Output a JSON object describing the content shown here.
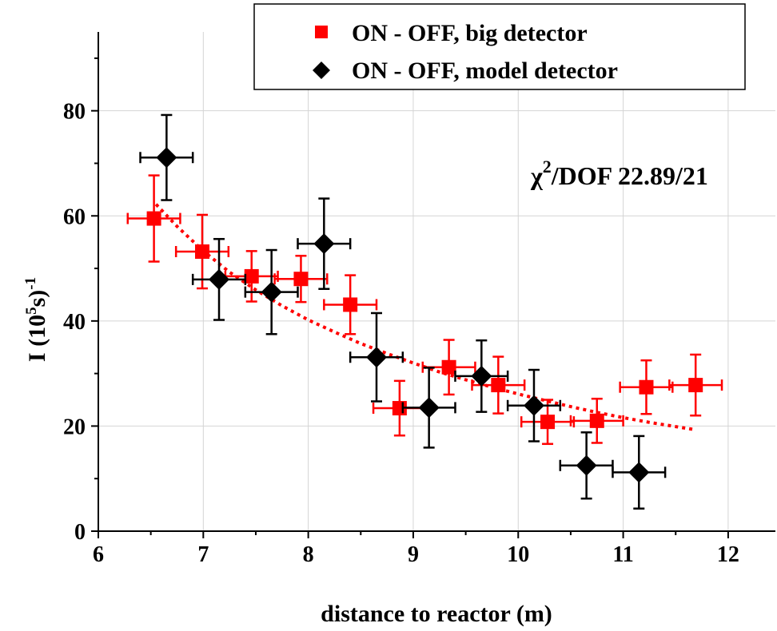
{
  "chart_data": {
    "type": "scatter",
    "xlabel": "distance to reactor (m)",
    "ylabel": "I (10",
    "ylabel_sup": "5",
    "ylabel_tail": "s)",
    "ylabel_exp": "-1",
    "xlim": [
      6,
      12.45
    ],
    "ylim": [
      0,
      95
    ],
    "x_ticks": [
      6,
      7,
      8,
      9,
      10,
      11,
      12
    ],
    "x_tick_labels": [
      "6",
      "7",
      "8",
      "9",
      "10",
      "11",
      "12"
    ],
    "y_ticks": [
      0,
      20,
      40,
      60,
      80
    ],
    "y_tick_labels": [
      "0",
      "20",
      "40",
      "60",
      "80"
    ],
    "grid": true,
    "legend_position": "top-right",
    "annotation": {
      "chi": "χ",
      "sup": "2",
      "rest": "/DOF 22.89/21"
    },
    "series": [
      {
        "name": "ON - OFF, big detector",
        "marker": "square",
        "color": "#ff0000",
        "points": [
          {
            "x": 6.53,
            "y": 59.5,
            "xerr": 0.25,
            "yerr": 8.2
          },
          {
            "x": 6.99,
            "y": 53.2,
            "xerr": 0.25,
            "yerr": 7.0
          },
          {
            "x": 7.46,
            "y": 48.5,
            "xerr": 0.25,
            "yerr": 4.8
          },
          {
            "x": 7.93,
            "y": 48.0,
            "xerr": 0.25,
            "yerr": 4.4
          },
          {
            "x": 8.4,
            "y": 43.1,
            "xerr": 0.25,
            "yerr": 5.6
          },
          {
            "x": 8.87,
            "y": 23.4,
            "xerr": 0.25,
            "yerr": 5.2
          },
          {
            "x": 9.34,
            "y": 31.2,
            "xerr": 0.25,
            "yerr": 5.2
          },
          {
            "x": 9.81,
            "y": 27.8,
            "xerr": 0.25,
            "yerr": 5.4
          },
          {
            "x": 10.28,
            "y": 20.8,
            "xerr": 0.25,
            "yerr": 4.2
          },
          {
            "x": 10.75,
            "y": 21.0,
            "xerr": 0.25,
            "yerr": 4.2
          },
          {
            "x": 11.22,
            "y": 27.4,
            "xerr": 0.25,
            "yerr": 5.1
          },
          {
            "x": 11.69,
            "y": 27.8,
            "xerr": 0.25,
            "yerr": 5.8
          }
        ]
      },
      {
        "name": "ON - OFF, model detector",
        "marker": "diamond",
        "color": "#000000",
        "points": [
          {
            "x": 6.65,
            "y": 71.1,
            "xerr": 0.25,
            "yerr": 8.1
          },
          {
            "x": 7.15,
            "y": 47.9,
            "xerr": 0.25,
            "yerr": 7.7
          },
          {
            "x": 7.65,
            "y": 45.5,
            "xerr": 0.25,
            "yerr": 8.0
          },
          {
            "x": 8.15,
            "y": 54.7,
            "xerr": 0.25,
            "yerr": 8.6
          },
          {
            "x": 8.65,
            "y": 33.1,
            "xerr": 0.25,
            "yerr": 8.4
          },
          {
            "x": 9.15,
            "y": 23.5,
            "xerr": 0.25,
            "yerr": 7.6
          },
          {
            "x": 9.65,
            "y": 29.5,
            "xerr": 0.25,
            "yerr": 6.8
          },
          {
            "x": 10.15,
            "y": 23.9,
            "xerr": 0.25,
            "yerr": 6.8
          },
          {
            "x": 10.65,
            "y": 12.5,
            "xerr": 0.25,
            "yerr": 6.3
          },
          {
            "x": 11.15,
            "y": 11.2,
            "xerr": 0.25,
            "yerr": 6.9
          }
        ]
      }
    ],
    "fit_curve": {
      "style": "dotted",
      "color": "#ff0000",
      "x": [
        6.55,
        6.75,
        7.0,
        7.25,
        7.5,
        7.75,
        8.0,
        8.25,
        8.5,
        8.75,
        9.0,
        9.25,
        9.5,
        9.75,
        10.0,
        10.25,
        10.5,
        10.75,
        11.0,
        11.25,
        11.5,
        11.69
      ],
      "y": [
        62.2,
        58.0,
        53.3,
        49.3,
        45.9,
        42.9,
        40.2,
        37.9,
        35.7,
        33.8,
        32.0,
        30.3,
        28.8,
        27.4,
        26.1,
        24.9,
        23.7,
        22.6,
        21.6,
        20.7,
        19.9,
        19.3
      ]
    }
  }
}
